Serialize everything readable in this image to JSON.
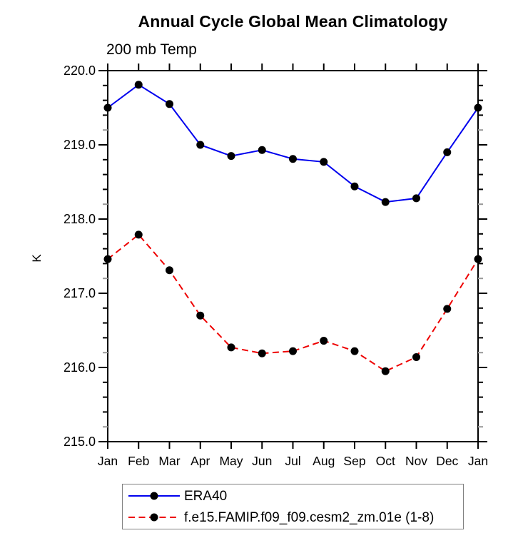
{
  "chart_data": {
    "type": "line",
    "title": "Annual Cycle Global Mean Climatology",
    "subtitle": "200 mb Temp",
    "ylabel": "K",
    "xlabel": "",
    "x_categories": [
      "Jan",
      "Feb",
      "Mar",
      "Apr",
      "May",
      "Jun",
      "Jul",
      "Aug",
      "Sep",
      "Oct",
      "Nov",
      "Dec",
      "Jan"
    ],
    "ylim": [
      215.0,
      220.0
    ],
    "y_major_ticks": [
      215.0,
      216.0,
      217.0,
      218.0,
      219.0,
      220.0
    ],
    "y_tick_labels": [
      "215.0",
      "216.0",
      "217.0",
      "218.0",
      "219.0",
      "220.0"
    ],
    "y_minor_step": 0.2,
    "grid": false,
    "legend_position": "bottom",
    "series": [
      {
        "name": "ERA40",
        "color": "#0000ee",
        "line_style": "solid",
        "marker": "filled-circle",
        "marker_color": "#000000",
        "values": [
          219.5,
          219.81,
          219.55,
          219.0,
          218.85,
          218.93,
          218.81,
          218.77,
          218.44,
          218.23,
          218.28,
          218.9,
          219.5
        ]
      },
      {
        "name": "f.e15.FAMIP.f09_f09.cesm2_zm.01e (1-8)",
        "color": "#ee0000",
        "line_style": "dashed",
        "marker": "filled-circle",
        "marker_color": "#000000",
        "values": [
          217.46,
          217.79,
          217.31,
          216.7,
          216.27,
          216.19,
          216.22,
          216.36,
          216.22,
          215.95,
          216.14,
          216.79,
          217.46
        ]
      }
    ],
    "colors": {
      "axis": "#000000",
      "minor_tick_light": "#999999",
      "legend_border": "#808080",
      "background": "#ffffff"
    }
  }
}
